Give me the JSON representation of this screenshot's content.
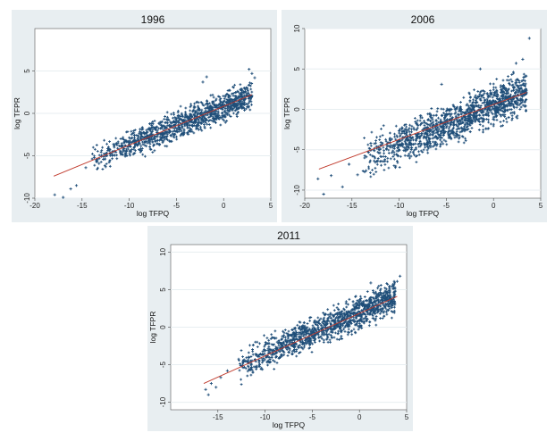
{
  "colors": {
    "panel_bg": "#e8eef1",
    "plot_bg": "#ffffff",
    "grid": "#e7eef1",
    "markers": "#1f4e79",
    "fit_line": "#c0392b"
  },
  "chart_data": [
    {
      "type": "scatter",
      "title": "1996",
      "xlabel": "log TFPQ",
      "ylabel": "log TFPR",
      "xlim": [
        -20,
        5
      ],
      "ylim": [
        -10,
        10
      ],
      "xticks": [
        -20,
        -15,
        -10,
        -5,
        0,
        5
      ],
      "yticks": [
        -10,
        -5,
        0,
        5
      ],
      "grid": true,
      "marker": "+",
      "cloud": {
        "x_min": -14,
        "x_max": 3,
        "slope": 0.45,
        "intercept": 0.8,
        "spread": 0.8,
        "points": 1200
      },
      "outliers": [
        [
          -17.9,
          -9.6
        ],
        [
          -17.0,
          -9.9
        ],
        [
          -16.2,
          -8.9
        ],
        [
          -15.6,
          -8.5
        ],
        [
          -14.6,
          -6.4
        ],
        [
          -13.7,
          -5.2
        ],
        [
          -13.2,
          -5.9
        ],
        [
          -12.5,
          -6.3
        ],
        [
          2.7,
          5.2
        ],
        [
          3.0,
          4.7
        ],
        [
          3.3,
          4.2
        ],
        [
          -2.2,
          3.7
        ],
        [
          -1.8,
          4.3
        ]
      ],
      "fit": {
        "x": [
          -18,
          3
        ],
        "y": [
          -7.4,
          2.2
        ]
      }
    },
    {
      "type": "scatter",
      "title": "2006",
      "xlabel": "log TFPQ",
      "ylabel": "log TFPR",
      "xlim": [
        -20,
        5
      ],
      "ylim": [
        -11,
        10
      ],
      "xticks": [
        -20,
        -15,
        -10,
        -5,
        0,
        5
      ],
      "yticks": [
        -10,
        -5,
        0,
        5,
        10
      ],
      "grid": true,
      "marker": "+",
      "cloud": {
        "x_min": -14,
        "x_max": 3.5,
        "slope": 0.48,
        "intercept": 0.5,
        "spread": 1.2,
        "points": 1400
      },
      "outliers": [
        [
          -18.6,
          -8.6
        ],
        [
          -18.0,
          -10.5
        ],
        [
          -17.2,
          -8.2
        ],
        [
          -16.0,
          -9.6
        ],
        [
          -15.3,
          -6.8
        ],
        [
          -14.4,
          -8.1
        ],
        [
          -13.5,
          -7.6
        ],
        [
          -13.0,
          -4.2
        ],
        [
          3.8,
          8.8
        ],
        [
          2.4,
          5.7
        ],
        [
          3.1,
          6.2
        ],
        [
          -1.4,
          5.0
        ],
        [
          -5.5,
          3.1
        ]
      ],
      "fit": {
        "x": [
          -18.5,
          3.5
        ],
        "y": [
          -7.4,
          2.1
        ]
      }
    },
    {
      "type": "scatter",
      "title": "2011",
      "xlabel": "log TFPQ",
      "ylabel": "log TFPR",
      "xlim": [
        -20,
        5
      ],
      "ylim": [
        -11,
        11
      ],
      "xticks": [
        -15,
        -10,
        -5,
        0,
        5
      ],
      "yticks": [
        -10,
        -5,
        0,
        5,
        10
      ],
      "grid": true,
      "marker": "+",
      "cloud": {
        "x_min": -13,
        "x_max": 3.8,
        "slope": 0.56,
        "intercept": 2.0,
        "spread": 1.0,
        "points": 1300
      },
      "outliers": [
        [
          -16.3,
          -8.3
        ],
        [
          -16.0,
          -9.0
        ],
        [
          -15.7,
          -7.5
        ],
        [
          -15.2,
          -8.0
        ],
        [
          -14.7,
          -6.7
        ],
        [
          -14.0,
          -5.8
        ],
        [
          4.3,
          6.8
        ],
        [
          4.0,
          6.1
        ],
        [
          3.6,
          5.6
        ],
        [
          1.2,
          5.9
        ],
        [
          -1.4,
          3.4
        ]
      ],
      "fit": {
        "x": [
          -16.5,
          4
        ],
        "y": [
          -7.5,
          4.1
        ]
      }
    }
  ]
}
